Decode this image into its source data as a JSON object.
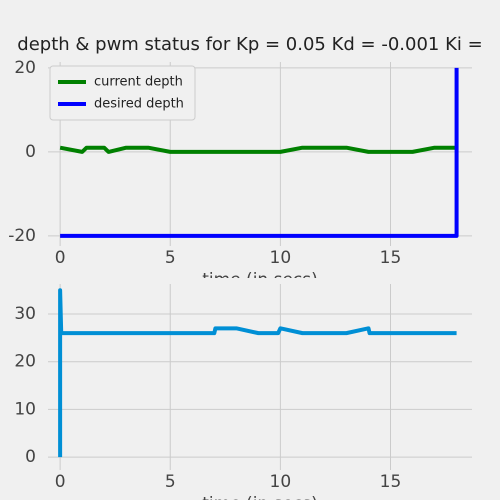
{
  "chart_data": [
    {
      "type": "line",
      "title": "depth & pwm status for Kp = 0.05 Kd = -0.001 Ki =",
      "xlabel": "time (in secs)",
      "xlim": [
        -0.55,
        18.7
      ],
      "xticks": [
        0,
        5,
        10,
        15
      ],
      "ylim": [
        -22.4,
        21.4
      ],
      "yticks": [
        -20,
        0,
        20
      ],
      "grid": true,
      "legend": "upper left",
      "series": [
        {
          "name": "current depth",
          "color": "#008000",
          "x": [
            0,
            1,
            1.2,
            2,
            2.2,
            3,
            4,
            5,
            6,
            7,
            8,
            9,
            10,
            11,
            12,
            13,
            14,
            15,
            16,
            17,
            18
          ],
          "values": [
            1,
            0,
            1,
            1,
            0,
            1,
            1,
            0,
            0,
            0,
            0,
            0,
            0,
            1,
            1,
            1,
            0,
            0,
            0,
            1,
            1
          ]
        },
        {
          "name": "desired depth",
          "color": "#0000ff",
          "x": [
            0,
            18,
            18
          ],
          "values": [
            -20,
            -20,
            20
          ]
        }
      ]
    },
    {
      "type": "line",
      "xlabel": "time (in secs)",
      "xlim": [
        -0.55,
        18.7
      ],
      "xticks": [
        0,
        5,
        10,
        15
      ],
      "ylim": [
        -2.7,
        36.3
      ],
      "yticks": [
        0,
        10,
        20,
        30
      ],
      "grid": true,
      "series": [
        {
          "color": "#008fd5",
          "x": [
            0,
            0,
            0.05,
            7,
            7.05,
            8,
            9,
            9.9,
            10,
            11,
            13,
            14,
            14.05,
            18
          ],
          "values": [
            0,
            35,
            26,
            26,
            27,
            27,
            26,
            26,
            27,
            26,
            26,
            27,
            26,
            26
          ]
        }
      ]
    }
  ]
}
